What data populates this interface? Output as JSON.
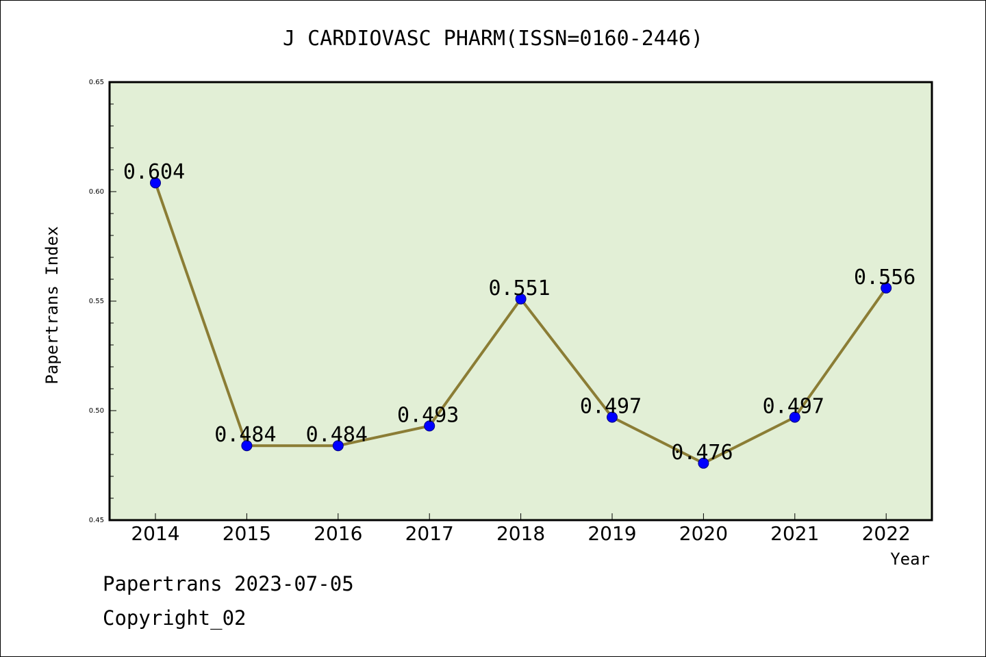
{
  "chart_data": {
    "type": "line",
    "title": "J CARDIOVASC PHARM(ISSN=0160-2446)",
    "xlabel": "Year",
    "ylabel": "Papertrans Index",
    "x": [
      "2014",
      "2015",
      "2016",
      "2017",
      "2018",
      "2019",
      "2020",
      "2021",
      "2022"
    ],
    "values": [
      0.604,
      0.484,
      0.484,
      0.493,
      0.551,
      0.497,
      0.476,
      0.497,
      0.556
    ],
    "data_labels": [
      "0.604",
      "0.484",
      "0.484",
      "0.493",
      "0.551",
      "0.497",
      "0.476",
      "0.497",
      "0.556"
    ],
    "ylim": [
      0.45,
      0.65
    ],
    "yticks": [
      "0.45",
      "0.50",
      "0.55",
      "0.60",
      "0.65"
    ],
    "grid": false,
    "legend": "none",
    "colors": {
      "plot_background": "#e2efd6",
      "line": "#8b7d35",
      "marker": "#0000ff",
      "marker_edge": "#000080"
    }
  },
  "footer": {
    "line1": "Papertrans 2023-07-05",
    "line2": "Copyright_02"
  }
}
